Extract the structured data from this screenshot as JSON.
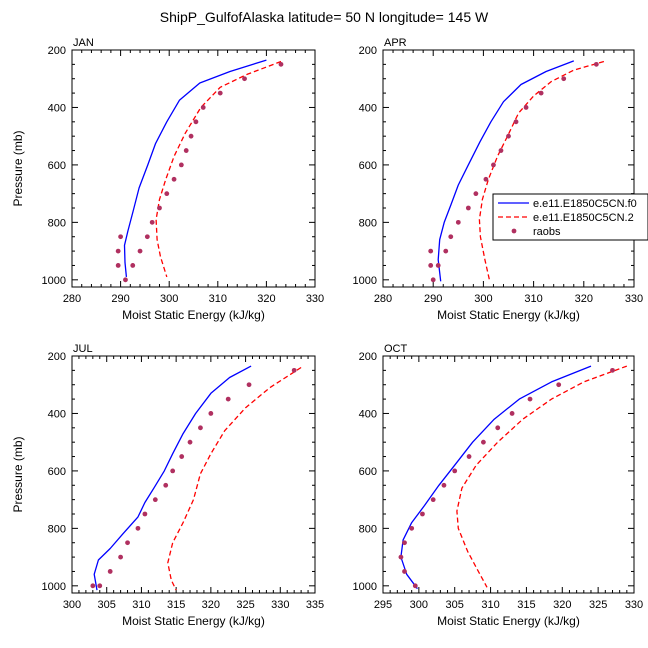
{
  "title": "ShipP_GulfofAlaska  latitude= 50 N longitude= 145 W",
  "colors": {
    "series1": "#0000ff",
    "series2": "#ff0000",
    "raobs": "#b03060",
    "axis": "#000000"
  },
  "legend": {
    "position": "right of APR panel",
    "entries": [
      {
        "label": "e.e11.E1850C5CN.f0",
        "style": "solid",
        "color": "#0000ff"
      },
      {
        "label": "e.e11.E1850C5CN.2",
        "style": "dashed",
        "color": "#ff0000"
      },
      {
        "label": "raobs",
        "style": "dots",
        "color": "#b03060"
      }
    ]
  },
  "chart_data": [
    {
      "type": "line",
      "panel_label": "JAN",
      "xlabel": "Moist Static Energy (kJ/kg)",
      "ylabel": "Pressure (mb)",
      "xlim": [
        280,
        330
      ],
      "ylim": [
        1025,
        200
      ],
      "y_reversed": true,
      "xticks": [
        280,
        290,
        300,
        310,
        320,
        330
      ],
      "yticks": [
        200,
        400,
        600,
        800,
        1000
      ],
      "series": [
        {
          "name": "e.e11.E1850C5CN.f0",
          "style": "solid",
          "color": "#0000ff",
          "x": [
            320.0,
            312.5,
            306.3,
            302.1,
            299.5,
            297.2,
            295.6,
            293.8,
            292.6,
            291.5,
            290.8,
            290.9,
            291.2
          ],
          "y": [
            235,
            275,
            315,
            375,
            450,
            525,
            600,
            680,
            760,
            830,
            880,
            940,
            990
          ]
        },
        {
          "name": "e.e11.E1850C5CN.2",
          "style": "dashed",
          "color": "#ff0000",
          "x": [
            323.0,
            316.0,
            310.5,
            306.5,
            303.3,
            301.0,
            299.3,
            298.0,
            297.3,
            297.5,
            298.2,
            299.5
          ],
          "y": [
            240,
            285,
            330,
            400,
            490,
            570,
            650,
            720,
            790,
            860,
            920,
            990
          ]
        },
        {
          "name": "raobs",
          "style": "dots",
          "color": "#b03060",
          "x": [
            323.0,
            315.5,
            310.5,
            307.0,
            305.5,
            304.5,
            303.5,
            302.5,
            301.0,
            299.5,
            298.0,
            296.5,
            295.5,
            294.0,
            292.5,
            291.0,
            290.0,
            289.5,
            289.5
          ],
          "y": [
            250,
            300,
            350,
            400,
            450,
            500,
            550,
            600,
            650,
            700,
            750,
            800,
            850,
            900,
            950,
            1000,
            850,
            900,
            950
          ]
        }
      ]
    },
    {
      "type": "line",
      "panel_label": "APR",
      "xlabel": "Moist Static Energy (kJ/kg)",
      "ylabel": "",
      "xlim": [
        280,
        330
      ],
      "ylim": [
        1025,
        200
      ],
      "y_reversed": true,
      "xticks": [
        280,
        290,
        300,
        310,
        320,
        330
      ],
      "yticks": [
        200,
        400,
        600,
        800,
        1000
      ],
      "series": [
        {
          "name": "e.e11.E1850C5CN.f0",
          "style": "solid",
          "color": "#0000ff",
          "x": [
            318.0,
            312.5,
            307.5,
            304.0,
            301.5,
            299.3,
            297.0,
            295.0,
            293.5,
            292.2,
            291.3,
            291.0,
            291.5
          ],
          "y": [
            238,
            275,
            320,
            380,
            450,
            520,
            600,
            670,
            740,
            800,
            860,
            930,
            1005
          ]
        },
        {
          "name": "e.e11.E1850C5CN.2",
          "style": "dashed",
          "color": "#ff0000",
          "x": [
            324.0,
            318.0,
            313.5,
            310.0,
            307.0,
            304.8,
            302.8,
            301.0,
            299.8,
            299.2,
            299.4,
            300.3,
            301.2
          ],
          "y": [
            240,
            270,
            310,
            360,
            420,
            500,
            570,
            650,
            720,
            790,
            850,
            930,
            1000
          ]
        },
        {
          "name": "raobs",
          "style": "dots",
          "color": "#b03060",
          "x": [
            322.5,
            316.0,
            311.5,
            308.5,
            306.5,
            305.0,
            303.5,
            302.0,
            300.5,
            298.5,
            297.0,
            295.0,
            293.5,
            292.5,
            291.0,
            290.0,
            289.5,
            289.5
          ],
          "y": [
            250,
            300,
            350,
            400,
            450,
            500,
            550,
            600,
            650,
            700,
            750,
            800,
            850,
            900,
            950,
            1000,
            950,
            900
          ]
        }
      ]
    },
    {
      "type": "line",
      "panel_label": "JUL",
      "xlabel": "Moist Static Energy (kJ/kg)",
      "ylabel": "Pressure (mb)",
      "xlim": [
        300,
        335
      ],
      "ylim": [
        1025,
        200
      ],
      "y_reversed": true,
      "xticks": [
        300,
        305,
        310,
        315,
        320,
        325,
        330,
        335
      ],
      "yticks": [
        200,
        400,
        600,
        800,
        1000
      ],
      "series": [
        {
          "name": "e.e11.E1850C5CN.f0",
          "style": "solid",
          "color": "#0000ff",
          "x": [
            325.8,
            322.7,
            320.0,
            317.8,
            316.0,
            314.5,
            313.3,
            311.8,
            310.5,
            309.5,
            307.3,
            305.5,
            303.8,
            303.2,
            303.6
          ],
          "y": [
            235,
            275,
            330,
            400,
            470,
            540,
            600,
            660,
            710,
            760,
            820,
            870,
            910,
            960,
            1015
          ]
        },
        {
          "name": "e.e11.E1850C5CN.2",
          "style": "dashed",
          "color": "#ff0000",
          "x": [
            333.0,
            328.5,
            325.0,
            322.0,
            320.0,
            318.5,
            317.5,
            316.0,
            314.5,
            313.8,
            314.3,
            315.0
          ],
          "y": [
            240,
            310,
            380,
            460,
            540,
            610,
            700,
            780,
            850,
            920,
            980,
            1015
          ]
        },
        {
          "name": "raobs",
          "style": "dots",
          "color": "#b03060",
          "x": [
            332.0,
            325.5,
            322.5,
            320.0,
            318.5,
            317.0,
            315.8,
            314.5,
            313.5,
            312.0,
            310.5,
            309.5,
            308.0,
            307.0,
            305.5,
            304.0,
            303.0
          ],
          "y": [
            250,
            300,
            350,
            400,
            450,
            500,
            550,
            600,
            650,
            700,
            750,
            800,
            850,
            900,
            950,
            1000,
            1000
          ]
        }
      ]
    },
    {
      "type": "line",
      "panel_label": "OCT",
      "xlabel": "Moist Static Energy (kJ/kg)",
      "ylabel": "",
      "xlim": [
        295,
        330
      ],
      "ylim": [
        1025,
        200
      ],
      "y_reversed": true,
      "xticks": [
        295,
        300,
        305,
        310,
        315,
        320,
        325,
        330
      ],
      "yticks": [
        200,
        400,
        600,
        800,
        1000
      ],
      "series": [
        {
          "name": "e.e11.E1850C5CN.f0",
          "style": "solid",
          "color": "#0000ff",
          "x": [
            324.0,
            318.5,
            314.0,
            310.5,
            307.5,
            305.0,
            302.8,
            300.8,
            299.0,
            297.8,
            297.5,
            298.3,
            299.8
          ],
          "y": [
            235,
            290,
            350,
            420,
            500,
            580,
            650,
            720,
            780,
            840,
            900,
            960,
            1010
          ]
        },
        {
          "name": "e.e11.E1850C5CN.2",
          "style": "dashed",
          "color": "#ff0000",
          "x": [
            329.0,
            323.0,
            318.5,
            314.5,
            311.0,
            308.0,
            306.0,
            305.3,
            305.5,
            306.8,
            308.3,
            309.5
          ],
          "y": [
            235,
            290,
            350,
            420,
            500,
            580,
            660,
            740,
            800,
            880,
            950,
            1005
          ]
        },
        {
          "name": "raobs",
          "style": "dots",
          "color": "#b03060",
          "x": [
            327.0,
            319.5,
            315.5,
            313.0,
            311.0,
            309.0,
            307.0,
            305.0,
            303.5,
            302.0,
            300.5,
            299.0,
            298.0,
            297.5,
            298.0,
            299.5
          ],
          "y": [
            250,
            300,
            350,
            400,
            450,
            500,
            550,
            600,
            650,
            700,
            750,
            800,
            850,
            900,
            950,
            1000
          ]
        }
      ]
    }
  ]
}
